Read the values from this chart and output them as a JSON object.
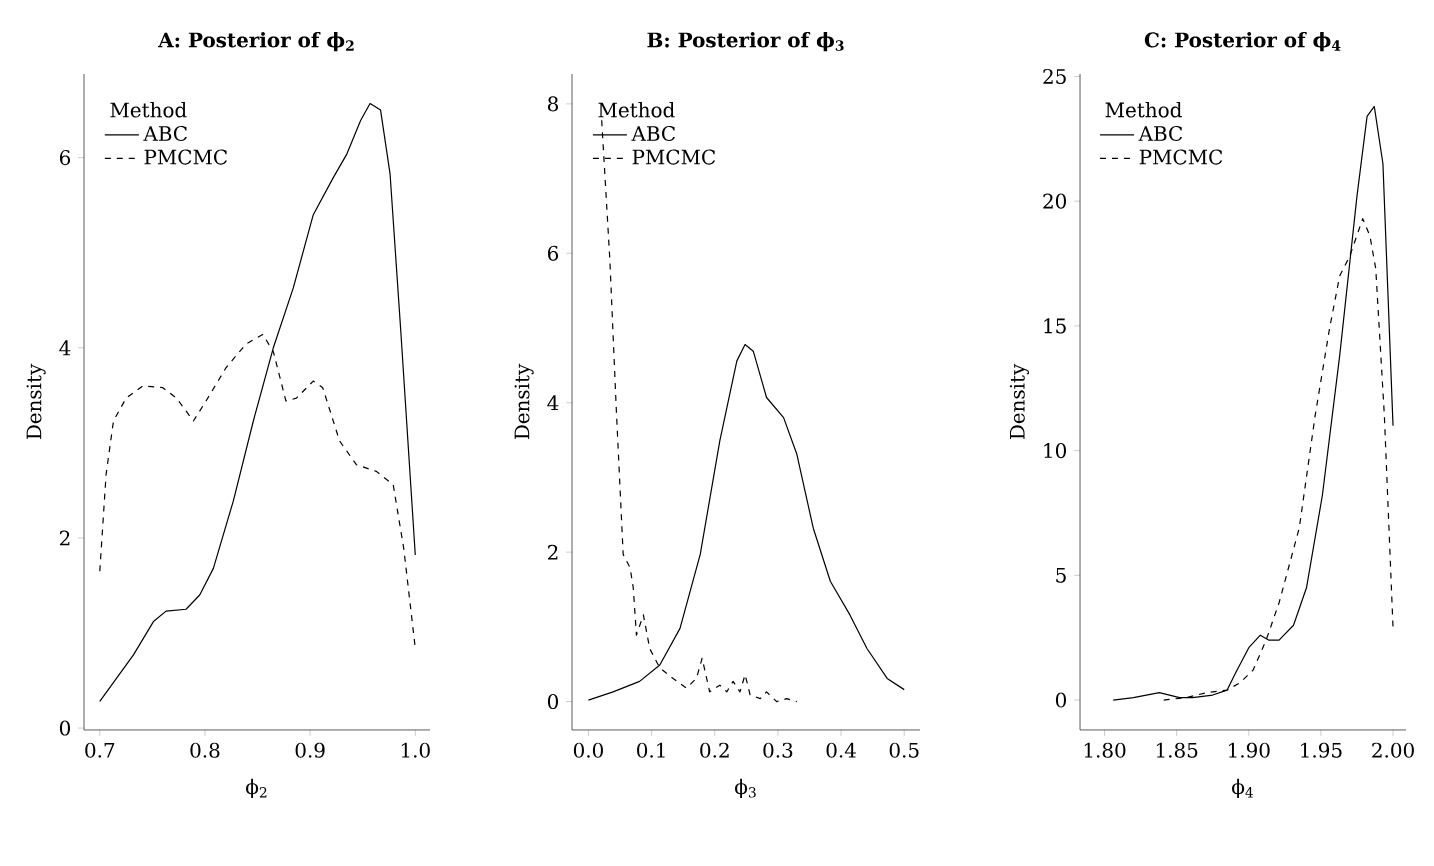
{
  "chart_data": [
    {
      "type": "line",
      "title": "A: Posterior of ϕ$_{2}$",
      "xlabel": "ϕ$_{2}$",
      "ylabel": "Density",
      "legend_title": "Method",
      "legend": "top left",
      "xlim": [
        0.685,
        1.014
      ],
      "ylim": [
        -0.02,
        6.88
      ],
      "xticks": [
        0.7,
        0.8,
        0.9,
        {
          "value": 1.0,
          "label": "1.0"
        }
      ],
      "yticks": [
        0,
        2,
        4,
        6
      ],
      "series": [
        {
          "name": "ABC",
          "color": "#000000",
          "line_style": "solid",
          "x": [
            0.7,
            0.732,
            0.751,
            0.763,
            0.782,
            0.795,
            0.808,
            0.827,
            0.846,
            0.865,
            0.884,
            0.903,
            0.922,
            0.935,
            0.948,
            0.957,
            0.967,
            0.976,
            0.986,
            1.0
          ],
          "values": [
            0.28,
            0.77,
            1.12,
            1.23,
            1.25,
            1.4,
            1.68,
            2.39,
            3.23,
            4.0,
            4.63,
            5.4,
            5.79,
            6.04,
            6.39,
            6.57,
            6.5,
            5.83,
            4.21,
            1.82
          ]
        },
        {
          "name": "PMCMC",
          "color": "#000000",
          "line_style": "dashed",
          "x": [
            0.7,
            0.706,
            0.713,
            0.725,
            0.741,
            0.76,
            0.773,
            0.789,
            0.801,
            0.82,
            0.839,
            0.855,
            0.865,
            0.877,
            0.887,
            0.903,
            0.912,
            0.928,
            0.944,
            0.963,
            0.979,
            0.989,
            1.0
          ],
          "values": [
            1.65,
            2.67,
            3.23,
            3.47,
            3.6,
            3.58,
            3.47,
            3.23,
            3.44,
            3.79,
            4.04,
            4.14,
            3.96,
            3.44,
            3.47,
            3.65,
            3.58,
            3.02,
            2.77,
            2.7,
            2.56,
            1.89,
            0.84
          ]
        }
      ]
    },
    {
      "type": "line",
      "title": "B: Posterior of ϕ$_{3}$",
      "xlabel": "ϕ$_{3}$",
      "ylabel": "Density",
      "legend_title": "Method",
      "legend": "top left",
      "xlim": [
        -0.026,
        0.525
      ],
      "ylim": [
        -0.38,
        8.4
      ],
      "xticks": [
        {
          "value": 0.0,
          "label": "0.0"
        },
        0.1,
        0.2,
        0.3,
        0.4,
        0.5
      ],
      "yticks": [
        0,
        2,
        4,
        6,
        8
      ],
      "series": [
        {
          "name": "ABC",
          "color": "#000000",
          "line_style": "solid",
          "x": [
            0.0,
            0.039,
            0.081,
            0.113,
            0.145,
            0.177,
            0.208,
            0.235,
            0.248,
            0.261,
            0.282,
            0.309,
            0.33,
            0.356,
            0.383,
            0.414,
            0.441,
            0.473,
            0.5
          ],
          "values": [
            0.02,
            0.13,
            0.27,
            0.49,
            0.98,
            1.97,
            3.49,
            4.56,
            4.78,
            4.69,
            4.07,
            3.8,
            3.31,
            2.32,
            1.61,
            1.16,
            0.71,
            0.31,
            0.16
          ]
        },
        {
          "name": "PMCMC",
          "color": "#000000",
          "line_style": "dashed",
          "x": [
            0.021,
            0.034,
            0.044,
            0.055,
            0.066,
            0.071,
            0.076,
            0.087,
            0.097,
            0.113,
            0.134,
            0.155,
            0.171,
            0.18,
            0.192,
            0.208,
            0.219,
            0.229,
            0.24,
            0.248,
            0.256,
            0.272,
            0.282,
            0.298,
            0.314,
            0.33
          ],
          "values": [
            7.78,
            5.9,
            3.93,
            1.97,
            1.79,
            1.52,
            0.89,
            1.16,
            0.71,
            0.45,
            0.31,
            0.18,
            0.31,
            0.58,
            0.13,
            0.22,
            0.13,
            0.27,
            0.13,
            0.36,
            0.09,
            0.04,
            0.13,
            0.0,
            0.04,
            0.0
          ]
        }
      ]
    },
    {
      "type": "line",
      "title": "C: Posterior of ϕ$_{4}$",
      "xlabel": "ϕ$_{4}$",
      "ylabel": "Density",
      "legend_title": "Method",
      "legend": "top left",
      "xlim": [
        1.783,
        2.009
      ],
      "ylim": [
        -1.2,
        25.1
      ],
      "xticks": [
        {
          "value": 1.8,
          "label": "1.80"
        },
        1.85,
        {
          "value": 1.9,
          "label": "1.90"
        },
        1.95,
        {
          "value": 2.0,
          "label": "2.00"
        }
      ],
      "yticks": [
        0,
        5,
        10,
        15,
        20,
        25
      ],
      "series": [
        {
          "name": "ABC",
          "color": "#000000",
          "line_style": "solid",
          "x": [
            1.806,
            1.82,
            1.838,
            1.852,
            1.861,
            1.875,
            1.885,
            1.891,
            1.9,
            1.908,
            1.914,
            1.921,
            1.931,
            1.94,
            1.951,
            1.963,
            1.975,
            1.982,
            1.987,
            1.993,
            2.0
          ],
          "values": [
            0,
            0.1,
            0.3,
            0.1,
            0.1,
            0.2,
            0.4,
            1.1,
            2.1,
            2.6,
            2.4,
            2.4,
            3.0,
            4.5,
            8.2,
            13.8,
            20.2,
            23.4,
            23.8,
            21.5,
            11.0
          ]
        },
        {
          "name": "PMCMC",
          "color": "#000000",
          "line_style": "dashed",
          "x": [
            1.841,
            1.857,
            1.871,
            1.885,
            1.894,
            1.903,
            1.912,
            1.921,
            1.935,
            1.946,
            1.956,
            1.963,
            1.97,
            1.979,
            1.984,
            1.988,
            1.994,
            2.0
          ],
          "values": [
            0,
            0.1,
            0.3,
            0.4,
            0.7,
            1.2,
            2.4,
            3.9,
            6.9,
            11.4,
            14.9,
            17.0,
            17.8,
            19.3,
            18.6,
            17.3,
            11.4,
            2.9
          ]
        }
      ]
    }
  ]
}
